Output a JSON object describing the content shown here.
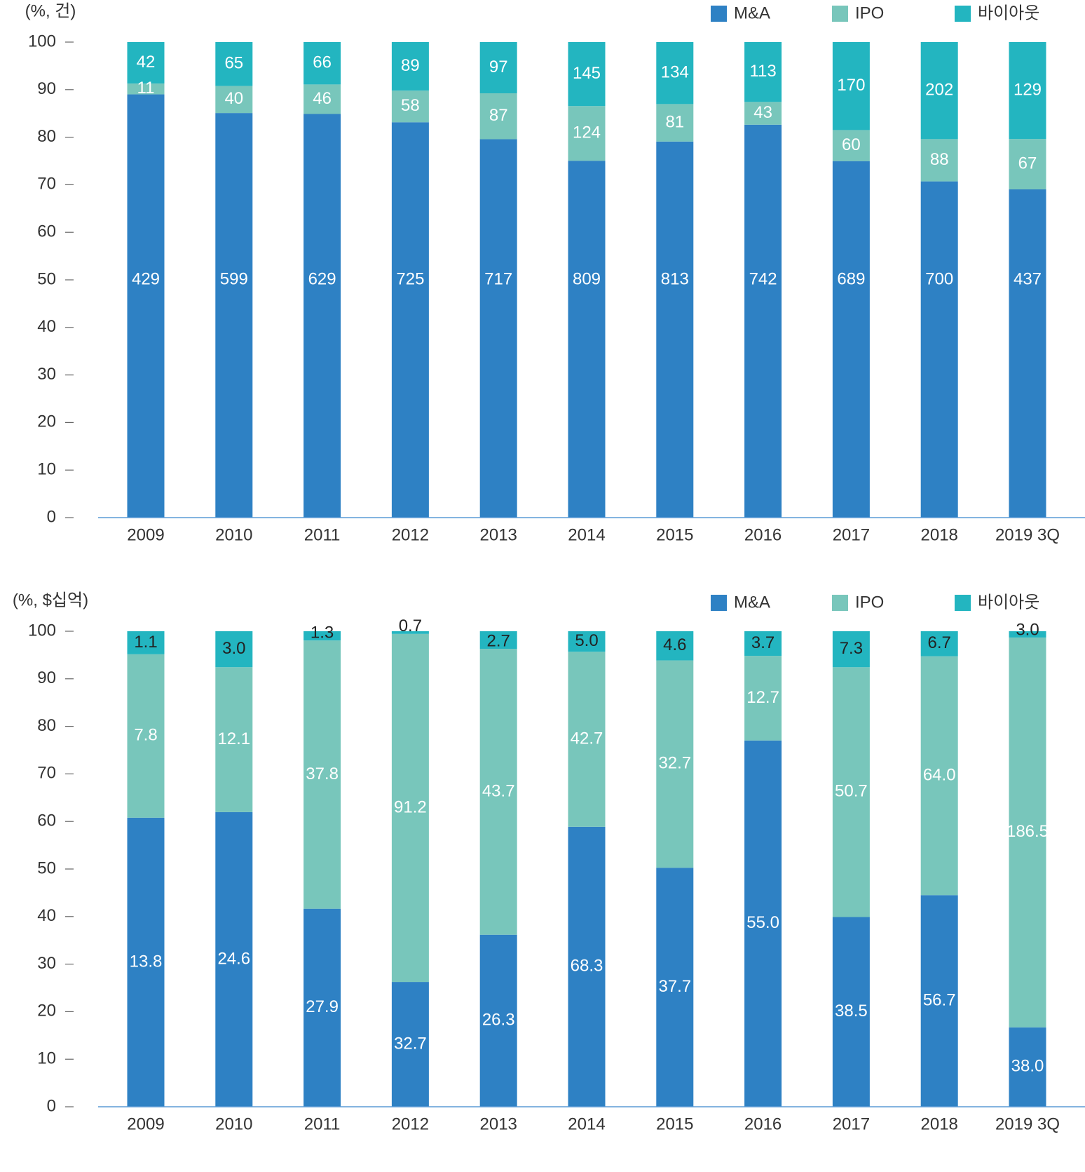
{
  "colors": {
    "ma": "#2e81c4",
    "ipo": "#78c6bb",
    "buyout": "#23b5c0",
    "axis": "#5b9bd5",
    "text": "#333333"
  },
  "chart_data": [
    {
      "type": "bar",
      "stacked": "percent",
      "unit_label": "(%, 건)",
      "ylim": [
        0,
        100
      ],
      "yticks": [
        "0",
        "10",
        "20",
        "30",
        "40",
        "50",
        "60",
        "70",
        "80",
        "90",
        "100"
      ],
      "categories": [
        "2009",
        "2010",
        "2011",
        "2012",
        "2013",
        "2014",
        "2015",
        "2016",
        "2017",
        "2018",
        "2019 3Q"
      ],
      "legend": [
        "M&A",
        "IPO",
        "바이아웃"
      ],
      "legend_position": "top-right",
      "series": [
        {
          "name": "M&A",
          "color": "ma",
          "values": [
            429,
            599,
            629,
            725,
            717,
            809,
            813,
            742,
            689,
            700,
            437
          ],
          "labels": [
            "429",
            "599",
            "629",
            "725",
            "717",
            "809",
            "813",
            "742",
            "689",
            "700",
            "437"
          ]
        },
        {
          "name": "IPO",
          "color": "ipo",
          "values": [
            11,
            40,
            46,
            58,
            87,
            124,
            81,
            43,
            60,
            88,
            67
          ],
          "labels": [
            "11",
            "40",
            "46",
            "58",
            "87",
            "124",
            "81",
            "43",
            "60",
            "88",
            "67"
          ]
        },
        {
          "name": "바이아웃",
          "color": "buyout",
          "values": [
            42,
            65,
            66,
            89,
            97,
            145,
            134,
            113,
            170,
            202,
            129
          ],
          "labels": [
            "42",
            "65",
            "66",
            "89",
            "97",
            "145",
            "134",
            "113",
            "170",
            "202",
            "129"
          ]
        }
      ]
    },
    {
      "type": "bar",
      "stacked": "percent",
      "unit_label": "(%, $십억)",
      "ylim": [
        0,
        100
      ],
      "yticks": [
        "0",
        "10",
        "20",
        "30",
        "40",
        "50",
        "60",
        "70",
        "80",
        "90",
        "100"
      ],
      "categories": [
        "2009",
        "2010",
        "2011",
        "2012",
        "2013",
        "2014",
        "2015",
        "2016",
        "2017",
        "2018",
        "2019 3Q"
      ],
      "legend": [
        "M&A",
        "IPO",
        "바이아웃"
      ],
      "legend_position": "top-right",
      "series": [
        {
          "name": "M&A",
          "color": "ma",
          "values": [
            13.8,
            24.6,
            27.9,
            32.7,
            26.3,
            68.3,
            37.7,
            55.0,
            38.5,
            56.7,
            38.0
          ],
          "labels": [
            "13.8",
            "24.6",
            "27.9",
            "32.7",
            "26.3",
            "68.3",
            "37.7",
            "55.0",
            "38.5",
            "56.7",
            "38.0"
          ]
        },
        {
          "name": "IPO",
          "color": "ipo",
          "values": [
            7.8,
            12.1,
            37.8,
            91.2,
            43.7,
            42.7,
            32.7,
            12.7,
            50.7,
            64.0,
            186.5
          ],
          "labels": [
            "7.8",
            "12.1",
            "37.8",
            "91.2",
            "43.7",
            "42.7",
            "32.7",
            "12.7",
            "50.7",
            "64.0",
            "186.5"
          ]
        },
        {
          "name": "바이아웃",
          "color": "buyout",
          "values": [
            1.1,
            3.0,
            1.3,
            0.7,
            2.7,
            5.0,
            4.6,
            3.7,
            7.3,
            6.7,
            3.0
          ],
          "labels": [
            "1.1",
            "3.0",
            "1.3",
            "0.7",
            "2.7",
            "5.0",
            "4.6",
            "3.7",
            "7.3",
            "6.7",
            "3.0"
          ]
        }
      ]
    }
  ]
}
